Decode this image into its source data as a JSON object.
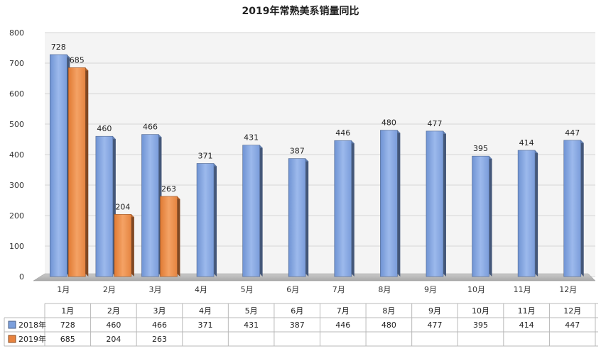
{
  "chart_data": {
    "type": "bar",
    "title": "2019年常熟美系销量同比",
    "categories": [
      "1月",
      "2月",
      "3月",
      "4月",
      "5月",
      "6月",
      "7月",
      "8月",
      "9月",
      "10月",
      "11月",
      "12月"
    ],
    "ylim": [
      0,
      800
    ],
    "yticks": [
      0,
      100,
      200,
      300,
      400,
      500,
      600,
      700,
      800
    ],
    "grid": true,
    "legend": "data-table",
    "series": [
      {
        "name": "2018年",
        "color": "#7b9fdc",
        "values": [
          728,
          460,
          466,
          371,
          431,
          387,
          446,
          480,
          477,
          395,
          414,
          447
        ]
      },
      {
        "name": "2019年",
        "color": "#e8833f",
        "values": [
          685,
          204,
          263,
          null,
          null,
          null,
          null,
          null,
          null,
          null,
          null,
          null
        ]
      }
    ]
  }
}
